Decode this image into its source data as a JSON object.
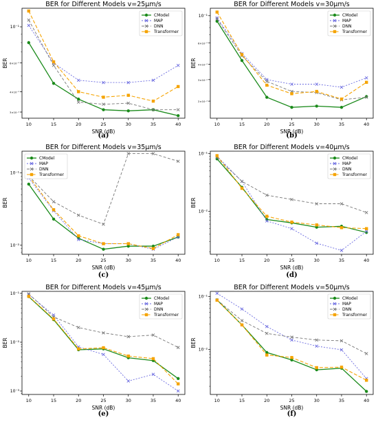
{
  "series_styles": [
    {
      "name": "CModel",
      "color": "#1a8a1a",
      "dash": "",
      "marker": "circle",
      "width": 1.3
    },
    {
      "name": "MAP",
      "color": "#6a6ae0",
      "dash": "2,2",
      "marker": "x",
      "width": 0.9
    },
    {
      "name": "DNN",
      "color": "#777777",
      "dash": "4,2.5",
      "marker": "x",
      "width": 0.9
    },
    {
      "name": "Transformer",
      "color": "#f5a300",
      "dash": "5,2.5",
      "marker": "square",
      "width": 1.1
    }
  ],
  "chart_data": [
    {
      "type": "line",
      "title": "BER for Different Models v=25μm/s",
      "caption": "(a)",
      "xlabel": "SNR (dB)",
      "ylabel": "BER",
      "yscale": "log",
      "ylim": [
        0.0275,
        0.13
      ],
      "x": [
        10,
        15,
        20,
        25,
        30,
        35,
        40
      ],
      "yticks": [
        {
          "v": 0.1,
          "label": "10⁻¹"
        },
        {
          "v": 0.06,
          "label": "6×10⁻²"
        },
        {
          "v": 0.04,
          "label": "4×10⁻²"
        },
        {
          "v": 0.03,
          "label": "3×10⁻²"
        }
      ],
      "legend": "top-right",
      "series": [
        {
          "name": "CModel",
          "values": [
            0.08,
            0.045,
            0.036,
            0.031,
            0.0305,
            0.031,
            0.0285
          ]
        },
        {
          "name": "MAP",
          "values": [
            0.102,
            0.06,
            0.047,
            0.0455,
            0.0455,
            0.047,
            0.058
          ]
        },
        {
          "name": "DNN",
          "values": [
            0.11,
            0.058,
            0.0345,
            0.0335,
            0.034,
            0.031,
            0.031
          ]
        },
        {
          "name": "Transformer",
          "values": [
            0.125,
            0.061,
            0.04,
            0.037,
            0.038,
            0.035,
            0.043
          ]
        }
      ]
    },
    {
      "type": "line",
      "title": "BER for Different Models v=30μm/s",
      "caption": "(b)",
      "xlabel": "SNR (dB)",
      "ylabel": "BER",
      "yscale": "log",
      "ylim": [
        0.0145,
        0.115
      ],
      "x": [
        10,
        15,
        20,
        25,
        30,
        35,
        40
      ],
      "yticks": [
        {
          "v": 0.1,
          "label": "10⁻¹"
        },
        {
          "v": 0.06,
          "label": "6×10⁻²"
        },
        {
          "v": 0.04,
          "label": "4×10⁻²"
        },
        {
          "v": 0.03,
          "label": "3×10⁻²"
        },
        {
          "v": 0.02,
          "label": "2×10⁻²"
        }
      ],
      "legend": "top-right",
      "series": [
        {
          "name": "CModel",
          "values": [
            0.09,
            0.043,
            0.0215,
            0.0178,
            0.0182,
            0.0178,
            0.0218
          ]
        },
        {
          "name": "MAP",
          "values": [
            0.096,
            0.049,
            0.03,
            0.0275,
            0.0275,
            0.026,
            0.031
          ]
        },
        {
          "name": "DNN",
          "values": [
            0.094,
            0.047,
            0.029,
            0.024,
            0.0235,
            0.0205,
            0.0215
          ]
        },
        {
          "name": "Transformer",
          "values": [
            0.107,
            0.048,
            0.027,
            0.023,
            0.024,
            0.0208,
            0.0285
          ]
        }
      ]
    },
    {
      "type": "line",
      "title": "BER for Different Models v=35μm/s",
      "caption": "(c)",
      "xlabel": "SNR (dB)",
      "ylabel": "BER",
      "yscale": "log",
      "ylim": [
        0.0075,
        0.2
      ],
      "x": [
        10,
        15,
        20,
        25,
        30,
        35,
        40
      ],
      "yticks": [
        {
          "v": 0.1,
          "label": "10⁻¹"
        },
        {
          "v": 0.01,
          "label": "10⁻²"
        }
      ],
      "legend": "top-left",
      "series": [
        {
          "name": "CModel",
          "values": [
            0.07,
            0.023,
            0.0125,
            0.0088,
            0.0097,
            0.0097,
            0.013
          ]
        },
        {
          "name": "MAP",
          "values": [
            0.085,
            0.03,
            0.012,
            0.0105,
            0.0105,
            0.0088,
            0.013
          ]
        },
        {
          "name": "DNN",
          "values": [
            0.091,
            0.04,
            0.026,
            0.0195,
            0.185,
            0.185,
            0.145
          ]
        },
        {
          "name": "Transformer",
          "values": [
            0.09,
            0.031,
            0.0135,
            0.0105,
            0.0105,
            0.009,
            0.014
          ]
        }
      ]
    },
    {
      "type": "line",
      "title": "BER for Different Models v=40μm/s",
      "caption": "(d)",
      "xlabel": "SNR (dB)",
      "ylabel": "BER",
      "yscale": "log",
      "ylim": [
        0.0018,
        0.11
      ],
      "x": [
        10,
        15,
        20,
        25,
        30,
        35,
        40
      ],
      "yticks": [
        {
          "v": 0.1,
          "label": "10⁻¹"
        },
        {
          "v": 0.01,
          "label": "10⁻²"
        }
      ],
      "legend": "top-right",
      "series": [
        {
          "name": "CModel",
          "values": [
            0.081,
            0.026,
            0.0072,
            0.0063,
            0.0053,
            0.0055,
            0.0043
          ]
        },
        {
          "name": "MAP",
          "values": [
            0.09,
            0.033,
            0.0068,
            0.005,
            0.0028,
            0.0021,
            0.0045
          ]
        },
        {
          "name": "DNN",
          "values": [
            0.085,
            0.033,
            0.019,
            0.016,
            0.0135,
            0.0135,
            0.0095
          ]
        },
        {
          "name": "Transformer",
          "values": [
            0.092,
            0.025,
            0.0082,
            0.0065,
            0.0058,
            0.0052,
            0.005
          ]
        }
      ]
    },
    {
      "type": "line",
      "title": "BER for Different Models v=45μm/s",
      "caption": "(e)",
      "xlabel": "SNR (dB)",
      "ylabel": "BER",
      "yscale": "log",
      "ylim": [
        0.00085,
        0.11
      ],
      "x": [
        10,
        15,
        20,
        25,
        30,
        35,
        40
      ],
      "yticks": [
        {
          "v": 0.1,
          "label": "10⁻¹"
        },
        {
          "v": 0.01,
          "label": "10⁻²"
        },
        {
          "v": 0.001,
          "label": "10⁻³"
        }
      ],
      "legend": "top-right",
      "series": [
        {
          "name": "CModel",
          "values": [
            0.086,
            0.029,
            0.007,
            0.0073,
            0.0048,
            0.0042,
            0.0018
          ]
        },
        {
          "name": "MAP",
          "values": [
            0.095,
            0.036,
            0.008,
            0.0056,
            0.0016,
            0.0022,
            0.001
          ]
        },
        {
          "name": "DNN",
          "values": [
            0.098,
            0.033,
            0.02,
            0.0155,
            0.013,
            0.014,
            0.0078
          ]
        },
        {
          "name": "Transformer",
          "values": [
            0.087,
            0.03,
            0.0073,
            0.0077,
            0.0052,
            0.0046,
            0.0014
          ]
        }
      ]
    },
    {
      "type": "line",
      "title": "BER for Different Models v=50μm/s",
      "caption": "(f)",
      "xlabel": "SNR (dB)",
      "ylabel": "BER",
      "yscale": "log",
      "ylim": [
        0.0014,
        0.125
      ],
      "x": [
        10,
        15,
        20,
        25,
        30,
        35,
        40
      ],
      "yticks": [
        {
          "v": 0.1,
          "label": "10⁻¹"
        },
        {
          "v": 0.01,
          "label": "10⁻²"
        }
      ],
      "legend": "top-right",
      "series": [
        {
          "name": "CModel",
          "values": [
            0.086,
            0.029,
            0.0087,
            0.0063,
            0.0041,
            0.0044,
            0.0016
          ]
        },
        {
          "name": "MAP",
          "values": [
            0.115,
            0.058,
            0.027,
            0.015,
            0.0115,
            0.0098,
            0.0028
          ]
        },
        {
          "name": "DNN",
          "values": [
            0.086,
            0.035,
            0.02,
            0.017,
            0.015,
            0.0145,
            0.0083
          ]
        },
        {
          "name": "Transformer",
          "values": [
            0.085,
            0.029,
            0.0078,
            0.007,
            0.0045,
            0.0046,
            0.0026
          ]
        }
      ]
    }
  ]
}
